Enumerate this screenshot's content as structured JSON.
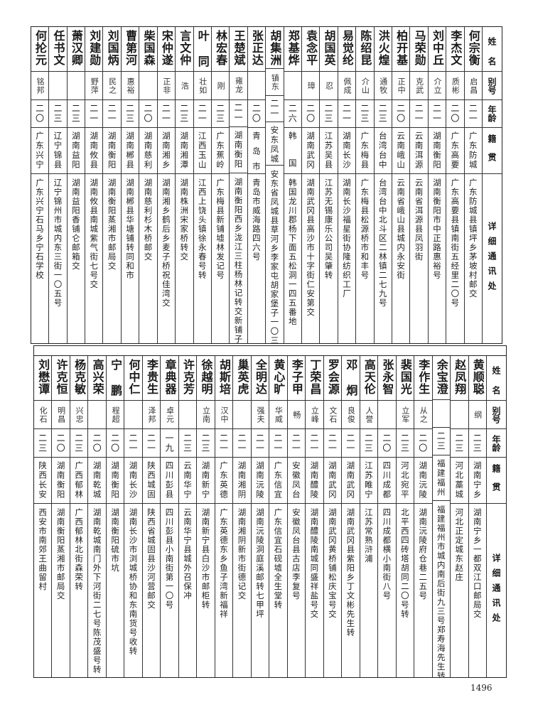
{
  "headers": {
    "name": "姓名",
    "alias": "别号",
    "age": "年龄",
    "native": "籍贯",
    "address": "详细通讯处"
  },
  "table_top": [
    {
      "name": "何宗衡",
      "alias": "启昌",
      "age": "二一",
      "native": "广东防城",
      "address": "广东防城县镇坪乡茅坡村邮交"
    },
    {
      "name": "李杰文",
      "alias": "质彬",
      "age": "二〇",
      "native": "广东高要",
      "address": "广东高要县镇南街五经里二〇号"
    },
    {
      "name": "刘中丘",
      "alias": "介立",
      "age": "二一",
      "native": "湖南衡阳",
      "address": "湖南衡阳市中正路惠裕号"
    },
    {
      "name": "马荣勋",
      "alias": "克武",
      "age": "二一",
      "native": "云南洱源",
      "address": "云南省洱源县凤羽街"
    },
    {
      "name": "柏开基",
      "alias": "正中",
      "age": "二〇",
      "native": "云南峨山",
      "address": "云南省峨山县城内永安街"
    },
    {
      "name": "洪火煌",
      "alias": "通牧",
      "age": "二三",
      "native": "台湾台中",
      "address": "台湾台中北斗区二林镇二七九号"
    },
    {
      "name": "陈绍昆",
      "alias": "介山",
      "age": "二三",
      "native": "广东梅县",
      "address": "广东梅县松源桥市和丰号"
    },
    {
      "name": "易觉纶",
      "alias": "佩成",
      "age": "二一",
      "native": "湖南长沙",
      "address": "湖南长沙福星街协隆纺织工厂"
    },
    {
      "name": "胡国英",
      "alias": "忍",
      "age": "二三",
      "native": "江苏吴县",
      "address": "江苏无锡康乐公司吴肇转"
    },
    {
      "name": "袁念平",
      "alias": "璋",
      "age": "二〇",
      "native": "湖南武冈",
      "address": "湖南武冈县高沙市十字街仁安第交"
    },
    {
      "name": "郑基烨",
      "alias": "",
      "age": "二六",
      "native": "韩国",
      "address": "韩国龙川郡杨下面五松洞一四五番地"
    },
    {
      "name": "胡集洲",
      "alias": "镇东",
      "age": "二一",
      "native": "安东凤城",
      "address": "安东省凤城县草河乡李家屯胡家堡子一〇三号"
    },
    {
      "name": "张正达",
      "alias": "",
      "age": "二〇",
      "native": "青岛市",
      "address": "青岛市威海路四六号"
    },
    {
      "name": "王楚斌",
      "alias": "雍龙",
      "age": "二一",
      "native": "湖南衡阳",
      "address": "湖南衡阳西乡泷江三柱杨林记转交新铺子"
    },
    {
      "name": "林宏春",
      "alias": "刚",
      "age": "二三",
      "native": "广东蕉岭",
      "address": "广东梅县新铺墟林发记号"
    },
    {
      "name": "叶同",
      "alias": "壮如",
      "age": "二一",
      "native": "江西玉山",
      "address": "江西上饶头镇徐永春号转"
    },
    {
      "name": "言文仲",
      "alias": "浩",
      "age": "二三",
      "native": "湖南湘潭",
      "address": "湖南株洲宋家桥转交"
    },
    {
      "name": "宋仲遂",
      "alias": "正非",
      "age": "二一",
      "native": "湖南湘乡",
      "address": "湖南湘乡鹤后乡麦子桥祝佳湾交"
    },
    {
      "name": "柴国森",
      "alias": "",
      "age": "二〇",
      "native": "湖南慈利",
      "address": "湖南慈利杉木桥邮交"
    },
    {
      "name": "曹第河",
      "alias": "惠裕",
      "age": "二三",
      "native": "湖南郴县",
      "address": "湖南郴县华塘铺转同和市"
    },
    {
      "name": "刘国炳",
      "alias": "民之",
      "age": "二一",
      "native": "湖南衡阳",
      "address": "湖南衡阳蒸湘市邮局交"
    },
    {
      "name": "刘建勋",
      "alias": "野萍",
      "age": "二一",
      "native": "湖南攸县",
      "address": "湖南攸县南城紫气街七号交"
    },
    {
      "name": "萧汉卿",
      "alias": "",
      "age": "二三",
      "native": "湖南益阳",
      "address": "湖南益阳香铺仑邮箱交"
    },
    {
      "name": "任书文",
      "alias": "",
      "age": "二三",
      "native": "辽宁锦县",
      "address": "辽宁锦州市城内东三街一〇五号"
    },
    {
      "name": "何抡元",
      "alias": "铭邦",
      "age": "二〇",
      "native": "广东兴宁",
      "address": "广东兴宁石马乡宁石学校"
    }
  ],
  "table_bottom": [
    {
      "name": "黄顺聪",
      "alias": "纲",
      "age": "二三",
      "native": "湖南宁乡",
      "address": "湖南宁乡一都双江口邮局交"
    },
    {
      "name": "赵凤翔",
      "alias": "",
      "age": "二三",
      "native": "河北藁城",
      "address": "河北正定城东赵庄"
    },
    {
      "name": "余宝澄",
      "alias": "",
      "age": "二三",
      "native": "福建福州",
      "address": "福建福州市城内南后街九三号郑寿海先生转"
    },
    {
      "name": "李作生",
      "alias": "从之",
      "age": "二〇",
      "native": "湖南沅陵",
      "address": "湖南沅陵府仓巷二五号"
    },
    {
      "name": "裴国光",
      "alias": "立军",
      "age": "二三",
      "native": "河北宛平",
      "address": "北平西四砖塔胡同二〇号转"
    },
    {
      "name": "张永智",
      "alias": "",
      "age": "二〇",
      "native": "四川成都",
      "address": "四川成都横小南街八号"
    },
    {
      "name": "高天伦",
      "alias": "人誉",
      "age": "二三",
      "native": "江苏睢宁",
      "address": "江苏常熟浒浦"
    },
    {
      "name": "邓炯",
      "alias": "良俊",
      "age": "二一",
      "native": "湖南武冈",
      "address": "湖南武冈县紫阳乡丁文彬先生转"
    },
    {
      "name": "罗会源",
      "alias": "文石",
      "age": "二一",
      "native": "湖南武冈",
      "address": "湖南武冈黄桥铺松庆宝号交"
    },
    {
      "name": "丁荣昌",
      "alias": "立峰",
      "age": "二一",
      "native": "湖南醴陵",
      "address": "湖南醴陵南城同盛祥盐号交"
    },
    {
      "name": "李子甲",
      "alias": "畅",
      "age": "二一",
      "native": "安徽凤台",
      "address": "安徽凤台县古店李复号"
    },
    {
      "name": "黄心旷",
      "alias": "华威",
      "age": "二一",
      "native": "广东信宜",
      "address": "广东信宜石砚墟全生堂转"
    },
    {
      "name": "全明达",
      "alias": "强夫",
      "age": "二一",
      "native": "湖南沅陵",
      "address": "湖南沅陵洞庭溪邮转七甲坪"
    },
    {
      "name": "巢英虎",
      "alias": "",
      "age": "二一",
      "native": "湖南湘阴",
      "address": "湖南湘阴新市街德记交"
    },
    {
      "name": "胡斯培",
      "alias": "汉中",
      "age": "二一",
      "native": "广东英德",
      "address": "广东英德东乡鱼子湾新福祥"
    },
    {
      "name": "徐越明",
      "alias": "立南",
      "age": "二三",
      "native": "湖南新宁",
      "address": "湖南新宁县白沙市邮柜转"
    },
    {
      "name": "许克芳",
      "alias": "",
      "age": "二三",
      "native": "云南华宁",
      "address": "云南华宁县城外召保冲"
    },
    {
      "name": "章典器",
      "alias": "卓元",
      "age": "一九",
      "native": "四川彭县",
      "address": "四川彭县小南街第一〇号"
    },
    {
      "name": "李贵生",
      "alias": "泽邦",
      "age": "二一",
      "native": "陕西城固",
      "address": "陕西省城固县沙河营邮交"
    },
    {
      "name": "何中仁",
      "alias": "",
      "age": "二一",
      "native": "湖南长沙",
      "address": "湖南长沙市浏城桥协和东南货号收转"
    },
    {
      "name": "宁鹏",
      "alias": "程超",
      "age": "二〇",
      "native": "湖南衡阳",
      "address": "湖南衡阳硫市坑"
    },
    {
      "name": "高兴荣",
      "alias": "",
      "age": "二〇",
      "native": "湖南乾城",
      "address": "湖南乾城南门外下河街二七号陈茂盛号转"
    },
    {
      "name": "杨克敏",
      "alias": "兴忠",
      "age": "二三",
      "native": "广西郁林",
      "address": "广西郁林北街森荣转"
    },
    {
      "name": "许克恒",
      "alias": "明昌",
      "age": "二〇",
      "native": "湖南衡阳",
      "address": "湖南衡阳蒸湘市邮局交"
    },
    {
      "name": "刘懋谭",
      "alias": "化石",
      "age": "二三",
      "native": "陕西长安",
      "address": "西安市南郊王曲留村"
    }
  ],
  "page_number": "1496"
}
